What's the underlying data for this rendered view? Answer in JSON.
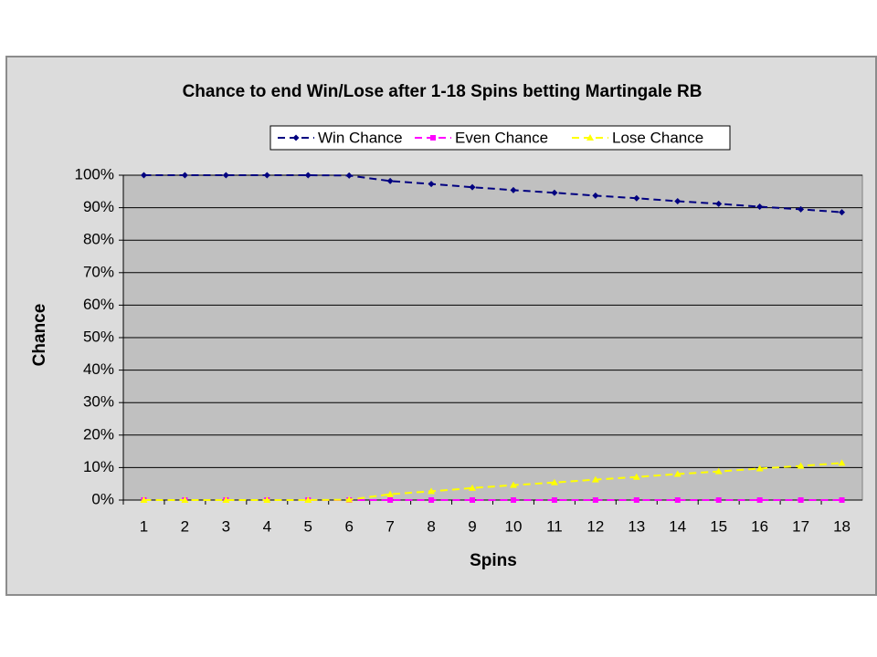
{
  "chart_data": {
    "type": "line",
    "title": "Chance to end Win/Lose after 1-18 Spins betting Martingale RB",
    "x_label": "Spins",
    "y_label": "Chance",
    "categories": [
      "1",
      "2",
      "3",
      "4",
      "5",
      "6",
      "7",
      "8",
      "9",
      "10",
      "11",
      "12",
      "13",
      "14",
      "15",
      "16",
      "17",
      "18"
    ],
    "series": [
      {
        "name": "Win Chance",
        "color": "#000080",
        "marker": "diamond",
        "values": [
          100,
          100,
          100,
          100,
          100,
          99.9,
          98.2,
          97.3,
          96.3,
          95.4,
          94.6,
          93.7,
          92.9,
          92.0,
          91.2,
          90.3,
          89.5,
          88.6
        ]
      },
      {
        "name": "Even Chance",
        "color": "#ff00ff",
        "marker": "square",
        "values": [
          0,
          0,
          0,
          0,
          0,
          0,
          0,
          0,
          0,
          0,
          0,
          0,
          0,
          0,
          0,
          0,
          0,
          0
        ]
      },
      {
        "name": "Lose Chance",
        "color": "#ffff00",
        "marker": "triangle",
        "values": [
          0,
          0,
          0,
          0,
          0,
          0.1,
          1.8,
          2.7,
          3.7,
          4.6,
          5.4,
          6.3,
          7.1,
          8.0,
          8.8,
          9.7,
          10.5,
          11.4
        ]
      }
    ],
    "ylim": [
      0,
      100
    ],
    "yticks": [
      {
        "value": 0,
        "label": "0%"
      },
      {
        "value": 10,
        "label": "10%"
      },
      {
        "value": 20,
        "label": "20%"
      },
      {
        "value": 30,
        "label": "30%"
      },
      {
        "value": 40,
        "label": "40%"
      },
      {
        "value": 50,
        "label": "50%"
      },
      {
        "value": 60,
        "label": "60%"
      },
      {
        "value": 70,
        "label": "70%"
      },
      {
        "value": 80,
        "label": "80%"
      },
      {
        "value": 90,
        "label": "90%"
      },
      {
        "value": 100,
        "label": "100%"
      }
    ],
    "grid": true,
    "legend": "top"
  }
}
